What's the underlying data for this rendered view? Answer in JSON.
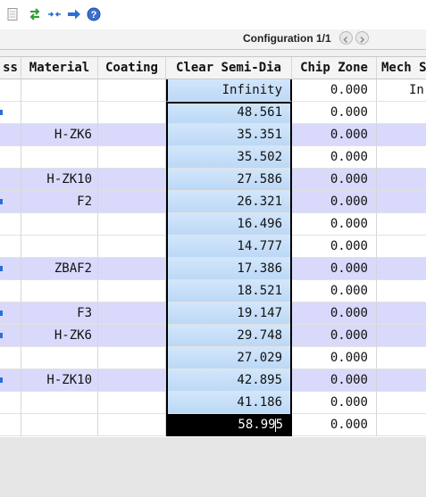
{
  "config": {
    "label": "Configuration 1/1",
    "prev_icon": "chevron-left-icon",
    "next_icon": "chevron-right-icon"
  },
  "toolbar": {
    "icons": [
      "page-icon",
      "swap-arrows-icon",
      "collapse-arrows-icon",
      "arrow-right-icon",
      "help-icon"
    ]
  },
  "columns": [
    "ss",
    "Material",
    "Coating",
    "Clear Semi-Dia",
    "Chip Zone",
    "Mech S"
  ],
  "rows": [
    {
      "material": "",
      "coating": "",
      "semi_dia": "Infinity",
      "chip": "0.000",
      "mech": "In"
    },
    {
      "material": "",
      "coating": "",
      "semi_dia": "48.561",
      "chip": "0.000",
      "mech": ""
    },
    {
      "material": "H-ZK6",
      "coating": "",
      "semi_dia": "35.351",
      "chip": "0.000",
      "mech": ""
    },
    {
      "material": "",
      "coating": "",
      "semi_dia": "35.502",
      "chip": "0.000",
      "mech": ""
    },
    {
      "material": "H-ZK10",
      "coating": "",
      "semi_dia": "27.586",
      "chip": "0.000",
      "mech": ""
    },
    {
      "material": "F2",
      "coating": "",
      "semi_dia": "26.321",
      "chip": "0.000",
      "mech": ""
    },
    {
      "material": "",
      "coating": "",
      "semi_dia": "16.496",
      "chip": "0.000",
      "mech": ""
    },
    {
      "material": "",
      "coating": "",
      "semi_dia": "14.777",
      "chip": "0.000",
      "mech": ""
    },
    {
      "material": "ZBAF2",
      "coating": "",
      "semi_dia": "17.386",
      "chip": "0.000",
      "mech": ""
    },
    {
      "material": "",
      "coating": "",
      "semi_dia": "18.521",
      "chip": "0.000",
      "mech": ""
    },
    {
      "material": "F3",
      "coating": "",
      "semi_dia": "19.147",
      "chip": "0.000",
      "mech": ""
    },
    {
      "material": "H-ZK6",
      "coating": "",
      "semi_dia": "29.748",
      "chip": "0.000",
      "mech": ""
    },
    {
      "material": "",
      "coating": "",
      "semi_dia": "27.029",
      "chip": "0.000",
      "mech": ""
    },
    {
      "material": "H-ZK10",
      "coating": "",
      "semi_dia": "42.895",
      "chip": "0.000",
      "mech": ""
    },
    {
      "material": "",
      "coating": "",
      "semi_dia": "41.186",
      "chip": "0.000",
      "mech": ""
    },
    {
      "material": "",
      "coating": "",
      "semi_dia": "58.995",
      "chip": "0.000",
      "mech": ""
    }
  ],
  "colors": {
    "glass_row": "#d9d9fb",
    "selection": "#bcd8f6",
    "active_cell": "#000000",
    "toolbar_green": "#2e9f2e",
    "toolbar_blue": "#2a6fd6"
  }
}
